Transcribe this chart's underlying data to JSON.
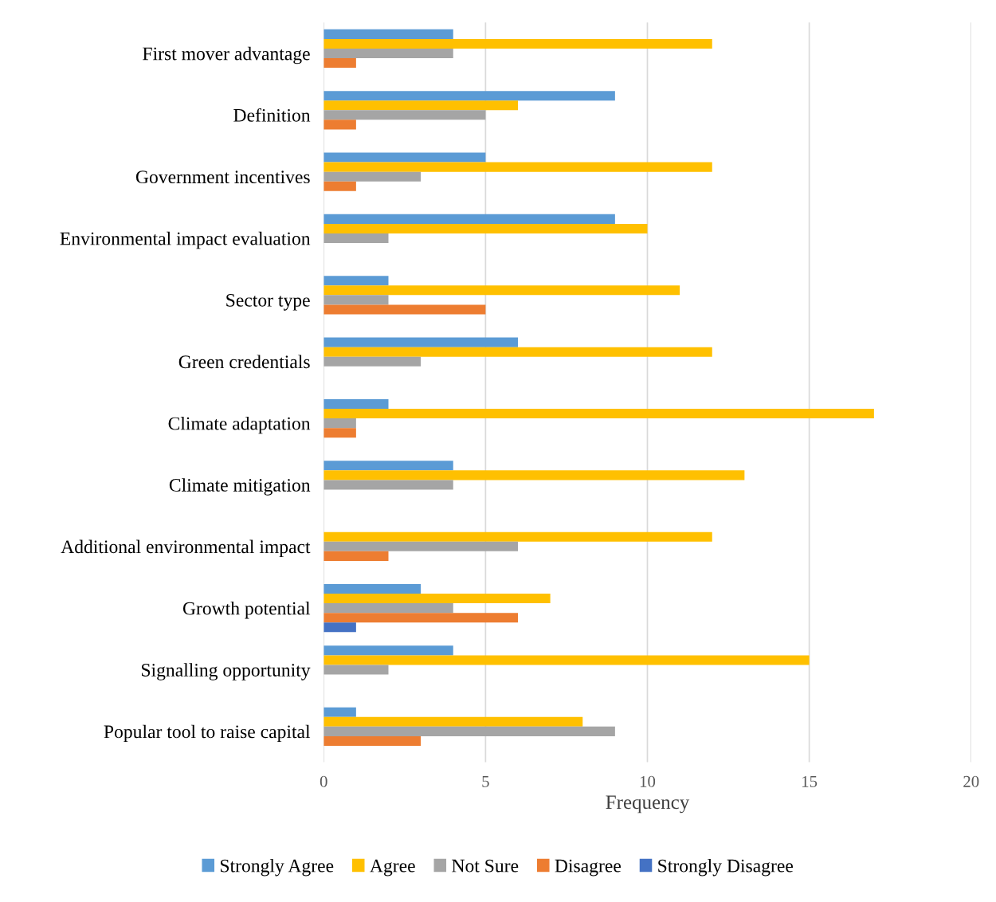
{
  "chart_data": {
    "type": "bar",
    "orientation": "horizontal",
    "xlabel": "Frequency",
    "categories": [
      "First mover advantage",
      "Definition",
      "Government incentives",
      "Environmental impact evaluation",
      "Sector type",
      "Green credentials",
      "Climate adaptation",
      "Climate mitigation",
      "Additional environmental impact",
      "Growth potential",
      "Signalling opportunity",
      "Popular tool to raise capital"
    ],
    "series": [
      {
        "name": "Strongly Agree",
        "color": "#5b9bd5",
        "values": [
          4,
          9,
          5,
          9,
          2,
          6,
          2,
          4,
          0,
          3,
          4,
          1
        ]
      },
      {
        "name": "Agree",
        "color": "#ffc000",
        "values": [
          12,
          6,
          12,
          10,
          11,
          12,
          17,
          13,
          12,
          7,
          15,
          8
        ]
      },
      {
        "name": "Not Sure",
        "color": "#a5a5a5",
        "values": [
          4,
          5,
          3,
          2,
          2,
          3,
          1,
          4,
          6,
          4,
          2,
          9
        ]
      },
      {
        "name": "Disagree",
        "color": "#ed7d31",
        "values": [
          1,
          1,
          1,
          0,
          5,
          0,
          1,
          0,
          2,
          6,
          0,
          3
        ]
      },
      {
        "name": "Strongly Disagree",
        "color": "#4472c4",
        "values": [
          0,
          0,
          0,
          0,
          0,
          0,
          0,
          0,
          0,
          1,
          0,
          0
        ]
      }
    ],
    "xlim": [
      0,
      20
    ],
    "xticks": [
      0,
      5,
      10,
      15,
      20
    ],
    "grid": "x",
    "legend": "bottom"
  }
}
